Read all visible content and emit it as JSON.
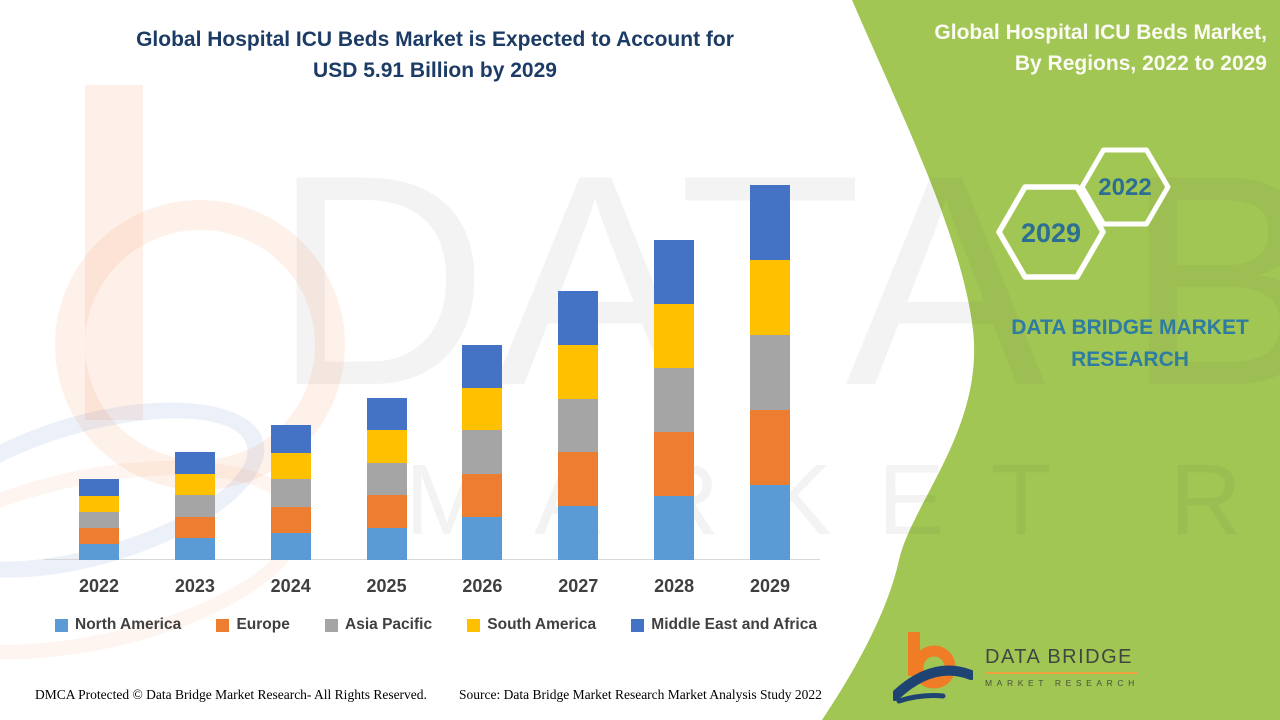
{
  "header": {
    "title_line1": "Global Hospital ICU Beds Market is Expected to Account for",
    "title_line2": "USD 5.91 Billion by 2029"
  },
  "side_panel": {
    "title_line1": "Global Hospital ICU Beds Market,",
    "title_line2": "By Regions, 2022 to 2029",
    "hex_year_front": "2029",
    "hex_year_back": "2022",
    "brand_line1": "DATA BRIDGE MARKET",
    "brand_line2": "RESEARCH",
    "bg_color": "#A1C653",
    "text_color": "#2E7CA2"
  },
  "chart_data": {
    "type": "bar",
    "stacked": true,
    "title": "Global Hospital ICU Beds Market, By Regions, 2022 to 2029",
    "unit": "USD Billion",
    "ylim": [
      0,
      6.2
    ],
    "grid": false,
    "legend_position": "bottom",
    "categories": [
      "2022",
      "2023",
      "2024",
      "2025",
      "2026",
      "2027",
      "2028",
      "2029"
    ],
    "series": [
      {
        "name": "North America",
        "color": "#5B9BD5",
        "values": [
          0.25,
          0.34,
          0.42,
          0.51,
          0.68,
          0.85,
          1.01,
          1.18
        ]
      },
      {
        "name": "Europe",
        "color": "#ED7D31",
        "values": [
          0.25,
          0.34,
          0.42,
          0.51,
          0.68,
          0.85,
          1.01,
          1.18
        ]
      },
      {
        "name": "Asia Pacific",
        "color": "#A5A5A5",
        "values": [
          0.26,
          0.34,
          0.43,
          0.51,
          0.68,
          0.84,
          1.01,
          1.18
        ]
      },
      {
        "name": "South America",
        "color": "#FFC000",
        "values": [
          0.25,
          0.34,
          0.42,
          0.51,
          0.67,
          0.85,
          1.01,
          1.18
        ]
      },
      {
        "name": "Middle East and Africa",
        "color": "#4472C4",
        "values": [
          0.26,
          0.34,
          0.43,
          0.51,
          0.68,
          0.84,
          1.01,
          1.19
        ]
      }
    ],
    "totals": [
      1.27,
      1.7,
      2.12,
      2.55,
      3.39,
      4.23,
      5.05,
      5.91
    ],
    "annotation": "USD 5.91 Billion by 2029"
  },
  "watermark": {
    "line1": "DATA BRIDGE",
    "line2": "MARKET RESEARCH"
  },
  "logo": {
    "title": "DATA BRIDGE",
    "subtitle": "MARKET RESEARCH"
  },
  "footer": {
    "left": "DMCA Protected © Data Bridge Market Research- All Rights Reserved.",
    "right": "Source: Data Bridge Market Research Market Analysis Study 2022"
  }
}
